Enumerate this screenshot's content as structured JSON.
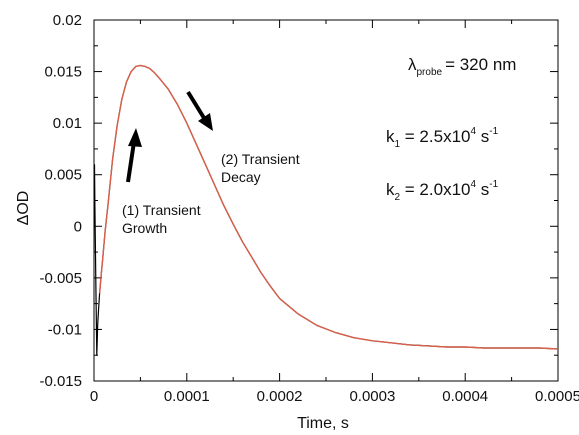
{
  "chart_data": {
    "type": "line",
    "title": "",
    "xlabel": "Time, s",
    "ylabel": "ΔOD",
    "xlim": [
      0,
      0.0005
    ],
    "ylim": [
      -0.015,
      0.02
    ],
    "grid": false,
    "x_ticks": [
      "0",
      "0.0001",
      "0.0002",
      "0.0003",
      "0.0004",
      "0.0005"
    ],
    "y_ticks": [
      "0.02",
      "0.015",
      "0.01",
      "0.005",
      "0",
      "-0.005",
      "-0.01",
      "-0.015"
    ],
    "series": [
      {
        "color": "#000000",
        "x": [
          5e-07,
          1e-06,
          2e-06,
          3e-06,
          4e-06,
          5e-06,
          6e-06,
          7e-06,
          8e-06,
          9e-06,
          1e-05,
          1.2e-05,
          1.5e-05,
          2e-05,
          2.5e-05,
          3e-05,
          3.5e-05,
          4e-05,
          4.5e-05,
          5e-05,
          5.5e-05,
          6e-05,
          6.5e-05,
          7e-05,
          8e-05,
          9e-05,
          0.0001,
          0.00011,
          0.00012,
          0.00013,
          0.00014,
          0.00015,
          0.00016,
          0.00017,
          0.00018,
          0.00019,
          0.0002,
          0.00022,
          0.00024,
          0.00026,
          0.00028,
          0.0003,
          0.00032,
          0.00034,
          0.00036,
          0.00038,
          0.0004,
          0.00042,
          0.00044,
          0.00046,
          0.00048,
          0.0005
        ],
        "y": [
          0.006,
          0.002,
          -0.006,
          -0.0125,
          -0.0095,
          -0.008,
          -0.0065,
          -0.0055,
          -0.0045,
          -0.0035,
          -0.0025,
          -0.0005,
          0.002,
          0.0065,
          0.0098,
          0.0123,
          0.014,
          0.015,
          0.0155,
          0.0156,
          0.0155,
          0.0153,
          0.0149,
          0.0144,
          0.0133,
          0.0118,
          0.01,
          0.008,
          0.006,
          0.004,
          0.002,
          0.0002,
          -0.0015,
          -0.003,
          -0.0045,
          -0.0058,
          -0.007,
          -0.0085,
          -0.0096,
          -0.0103,
          -0.0108,
          -0.0111,
          -0.0113,
          -0.0115,
          -0.0116,
          -0.0117,
          -0.0117,
          -0.0118,
          -0.0118,
          -0.0118,
          -0.0118,
          -0.0119
        ]
      },
      {
        "color": "#d9604a",
        "x": [
          6e-06,
          8e-06,
          1e-05,
          1.2e-05,
          1.5e-05,
          2e-05,
          2.5e-05,
          3e-05,
          3.5e-05,
          4e-05,
          4.5e-05,
          5e-05,
          5.5e-05,
          6e-05,
          6.5e-05,
          7e-05,
          8e-05,
          9e-05,
          0.0001,
          0.00011,
          0.00012,
          0.00013,
          0.00014,
          0.00015,
          0.00016,
          0.00017,
          0.00018,
          0.00019,
          0.0002,
          0.00022,
          0.00024,
          0.00026,
          0.00028,
          0.0003,
          0.00032,
          0.00034,
          0.00036,
          0.00038,
          0.0004,
          0.00042,
          0.00044,
          0.00046,
          0.00048,
          0.0005
        ],
        "y": [
          -0.0065,
          -0.0045,
          -0.0025,
          -0.0005,
          0.002,
          0.0065,
          0.0098,
          0.0123,
          0.014,
          0.015,
          0.0155,
          0.0156,
          0.0155,
          0.0153,
          0.0149,
          0.0144,
          0.0133,
          0.0118,
          0.01,
          0.008,
          0.006,
          0.004,
          0.002,
          0.0002,
          -0.0015,
          -0.003,
          -0.0045,
          -0.0058,
          -0.007,
          -0.0085,
          -0.0096,
          -0.0103,
          -0.0108,
          -0.0111,
          -0.0113,
          -0.0115,
          -0.0116,
          -0.0117,
          -0.0117,
          -0.0118,
          -0.0118,
          -0.0118,
          -0.0118,
          -0.0119
        ]
      }
    ],
    "annotations": {
      "growth_line1": "(1) Transient",
      "growth_line2": "Growth",
      "decay_line1": "(2) Transient",
      "decay_line2": "Decay",
      "lambda_symbol": "λ",
      "lambda_sub": "probe",
      "lambda_value": "= 320 nm",
      "k1_prefix": "k",
      "k1_sub": "1",
      "k1_value": " = 2.5x10",
      "k1_exp": "4",
      "k1_unit": " s",
      "k1_unit_exp": "-1",
      "k2_prefix": "k",
      "k2_sub": "2",
      "k2_value": " = 2.0x10",
      "k2_exp": "4",
      "k2_unit": " s",
      "k2_unit_exp": "-1"
    }
  }
}
